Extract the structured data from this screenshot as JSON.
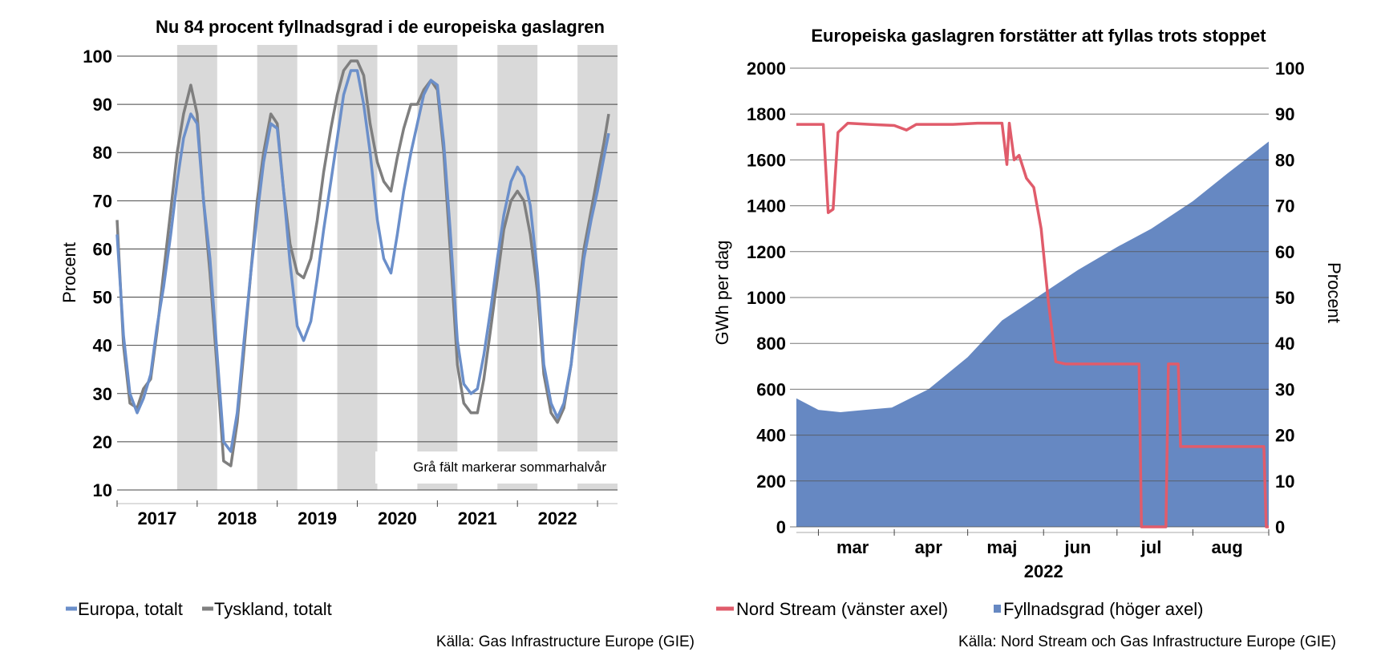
{
  "chart_data": [
    {
      "type": "line",
      "title": "Nu 84 procent fyllnadsgrad i de europeiska gaslagren",
      "ylabel": "Procent",
      "ylim": [
        10,
        100
      ],
      "yticks": [
        10,
        20,
        30,
        40,
        50,
        60,
        70,
        80,
        90,
        100
      ],
      "xlim": [
        2016.5,
        2022.75
      ],
      "x_tick_labels": [
        "2017",
        "2018",
        "2019",
        "2020",
        "2021",
        "2022"
      ],
      "shaded_periods": [
        [
          2017.25,
          2017.75
        ],
        [
          2018.25,
          2018.75
        ],
        [
          2019.25,
          2019.75
        ],
        [
          2020.25,
          2020.75
        ],
        [
          2021.25,
          2021.75
        ],
        [
          2022.25,
          2022.75
        ]
      ],
      "shade_note": "Grå fält markerar sommarhalvår",
      "colors": {
        "Europa, totalt": "#6b8fca",
        "Tyskland, totalt": "#7f7f7f",
        "shade": "#d9d9d9"
      },
      "series": [
        {
          "name": "Europa, totalt",
          "x": [
            2016.5,
            2016.58,
            2016.66,
            2016.75,
            2016.83,
            2016.92,
            2017.0,
            2017.08,
            2017.17,
            2017.25,
            2017.33,
            2017.42,
            2017.5,
            2017.58,
            2017.66,
            2017.75,
            2017.83,
            2017.92,
            2018.0,
            2018.08,
            2018.17,
            2018.25,
            2018.33,
            2018.42,
            2018.5,
            2018.58,
            2018.66,
            2018.75,
            2018.83,
            2018.92,
            2019.0,
            2019.08,
            2019.17,
            2019.25,
            2019.33,
            2019.42,
            2019.5,
            2019.58,
            2019.66,
            2019.75,
            2019.83,
            2019.92,
            2020.0,
            2020.08,
            2020.17,
            2020.25,
            2020.33,
            2020.42,
            2020.5,
            2020.58,
            2020.66,
            2020.75,
            2020.83,
            2020.92,
            2021.0,
            2021.08,
            2021.17,
            2021.25,
            2021.33,
            2021.42,
            2021.5,
            2021.58,
            2021.66,
            2021.75,
            2021.83,
            2021.92,
            2022.0,
            2022.08,
            2022.17,
            2022.25,
            2022.33,
            2022.42,
            2022.5,
            2022.58,
            2022.64
          ],
          "values": [
            63,
            42,
            30,
            26,
            29,
            34,
            44,
            52,
            63,
            74,
            83,
            88,
            86,
            70,
            58,
            38,
            20,
            18,
            26,
            40,
            55,
            67,
            78,
            86,
            85,
            72,
            57,
            44,
            41,
            45,
            54,
            64,
            74,
            83,
            92,
            97,
            97,
            90,
            80,
            66,
            58,
            55,
            63,
            72,
            80,
            86,
            92,
            95,
            94,
            82,
            64,
            41,
            32,
            30,
            31,
            38,
            48,
            58,
            67,
            74,
            77,
            75,
            69,
            55,
            36,
            28,
            25,
            28,
            36,
            47,
            58,
            66,
            72,
            79,
            84
          ]
        },
        {
          "name": "Tyskland, totalt",
          "x": [
            2016.5,
            2016.58,
            2016.66,
            2016.75,
            2016.83,
            2016.92,
            2017.0,
            2017.08,
            2017.17,
            2017.25,
            2017.33,
            2017.42,
            2017.5,
            2017.58,
            2017.66,
            2017.75,
            2017.83,
            2017.92,
            2018.0,
            2018.08,
            2018.17,
            2018.25,
            2018.33,
            2018.42,
            2018.5,
            2018.58,
            2018.66,
            2018.75,
            2018.83,
            2018.92,
            2019.0,
            2019.08,
            2019.17,
            2019.25,
            2019.33,
            2019.42,
            2019.5,
            2019.58,
            2019.66,
            2019.75,
            2019.83,
            2019.92,
            2020.0,
            2020.08,
            2020.17,
            2020.25,
            2020.33,
            2020.42,
            2020.5,
            2020.58,
            2020.66,
            2020.75,
            2020.83,
            2020.92,
            2021.0,
            2021.08,
            2021.17,
            2021.25,
            2021.33,
            2021.42,
            2021.5,
            2021.58,
            2021.66,
            2021.75,
            2021.83,
            2021.92,
            2022.0,
            2022.08,
            2022.17,
            2022.25,
            2022.33,
            2022.42,
            2022.5,
            2022.58,
            2022.64
          ],
          "values": [
            66,
            40,
            28,
            27,
            31,
            33,
            43,
            55,
            68,
            80,
            88,
            94,
            88,
            70,
            55,
            35,
            16,
            15,
            24,
            38,
            55,
            70,
            80,
            88,
            86,
            72,
            61,
            55,
            54,
            58,
            66,
            76,
            85,
            92,
            97,
            99,
            99,
            96,
            86,
            78,
            74,
            72,
            79,
            85,
            90,
            90,
            93,
            95,
            93,
            80,
            60,
            36,
            28,
            26,
            26,
            33,
            44,
            54,
            64,
            70,
            72,
            70,
            63,
            51,
            34,
            26,
            24,
            27,
            36,
            49,
            60,
            68,
            75,
            82,
            88
          ]
        }
      ],
      "legend": [
        "Europa, totalt",
        "Tyskland, totalt"
      ],
      "legend_position": "bottom",
      "source": "Källa: Gas Infrastructure Europe (GIE)",
      "grid": true
    },
    {
      "type": "line+area",
      "title": "Europeiska gaslagren forstätter att fyllas trots stoppet",
      "ylabel_left": "GWh per dag",
      "ylabel_right": "Procent",
      "ylim_left": [
        0,
        2000
      ],
      "ylim_right": [
        0,
        100
      ],
      "yticks_left": [
        0,
        200,
        400,
        600,
        800,
        1000,
        1200,
        1400,
        1600,
        1800,
        2000
      ],
      "yticks_right": [
        0,
        10,
        20,
        30,
        40,
        50,
        60,
        70,
        80,
        90,
        100
      ],
      "xlim": [
        "2022-02-20",
        "2022-09-01"
      ],
      "x_tick_labels": [
        "mar",
        "apr",
        "maj",
        "jun",
        "jul",
        "aug"
      ],
      "x_year_label": "2022",
      "colors": {
        "Nord Stream (vänster axel)": "#e05c6b",
        "Fyllnadsgrad (höger axel)": "#6688c2"
      },
      "series": [
        {
          "name": "Nord Stream (vänster axel)",
          "axis": "left",
          "x": [
            "2022-02-20",
            "2022-02-28",
            "2022-03-03",
            "2022-03-05",
            "2022-03-07",
            "2022-03-09",
            "2022-03-11",
            "2022-03-13",
            "2022-03-22",
            "2022-04-01",
            "2022-04-06",
            "2022-04-10",
            "2022-04-15",
            "2022-04-25",
            "2022-05-05",
            "2022-05-15",
            "2022-05-17",
            "2022-05-18",
            "2022-05-20",
            "2022-05-22",
            "2022-05-25",
            "2022-05-28",
            "2022-05-31",
            "2022-06-03",
            "2022-06-06",
            "2022-06-10",
            "2022-06-14",
            "2022-06-16",
            "2022-07-10",
            "2022-07-11",
            "2022-07-21",
            "2022-07-22",
            "2022-07-26",
            "2022-07-27",
            "2022-08-20",
            "2022-08-30",
            "2022-08-31",
            "2022-09-01"
          ],
          "values": [
            1755,
            1755,
            1755,
            1370,
            1385,
            1720,
            1740,
            1760,
            1755,
            1750,
            1730,
            1755,
            1755,
            1755,
            1760,
            1760,
            1580,
            1760,
            1600,
            1620,
            1520,
            1480,
            1300,
            980,
            720,
            710,
            710,
            710,
            710,
            0,
            0,
            710,
            710,
            350,
            350,
            350,
            0,
            0
          ]
        },
        {
          "name": "Fyllnadsgrad (höger axel)",
          "axis": "right",
          "x": [
            "2022-02-20",
            "2022-03-01",
            "2022-03-10",
            "2022-03-20",
            "2022-03-31",
            "2022-04-15",
            "2022-05-01",
            "2022-05-15",
            "2022-06-01",
            "2022-06-15",
            "2022-07-01",
            "2022-07-15",
            "2022-08-01",
            "2022-08-15",
            "2022-09-01"
          ],
          "values": [
            28,
            25.5,
            25,
            25.5,
            26,
            30,
            37,
            45,
            51,
            56,
            61,
            65,
            71,
            77,
            84
          ]
        }
      ],
      "legend": [
        "Nord Stream (vänster axel)",
        "Fyllnadsgrad (höger axel)"
      ],
      "legend_position": "bottom",
      "source": "Källa: Nord Stream och Gas Infrastructure Europe (GIE)",
      "grid": true
    }
  ]
}
